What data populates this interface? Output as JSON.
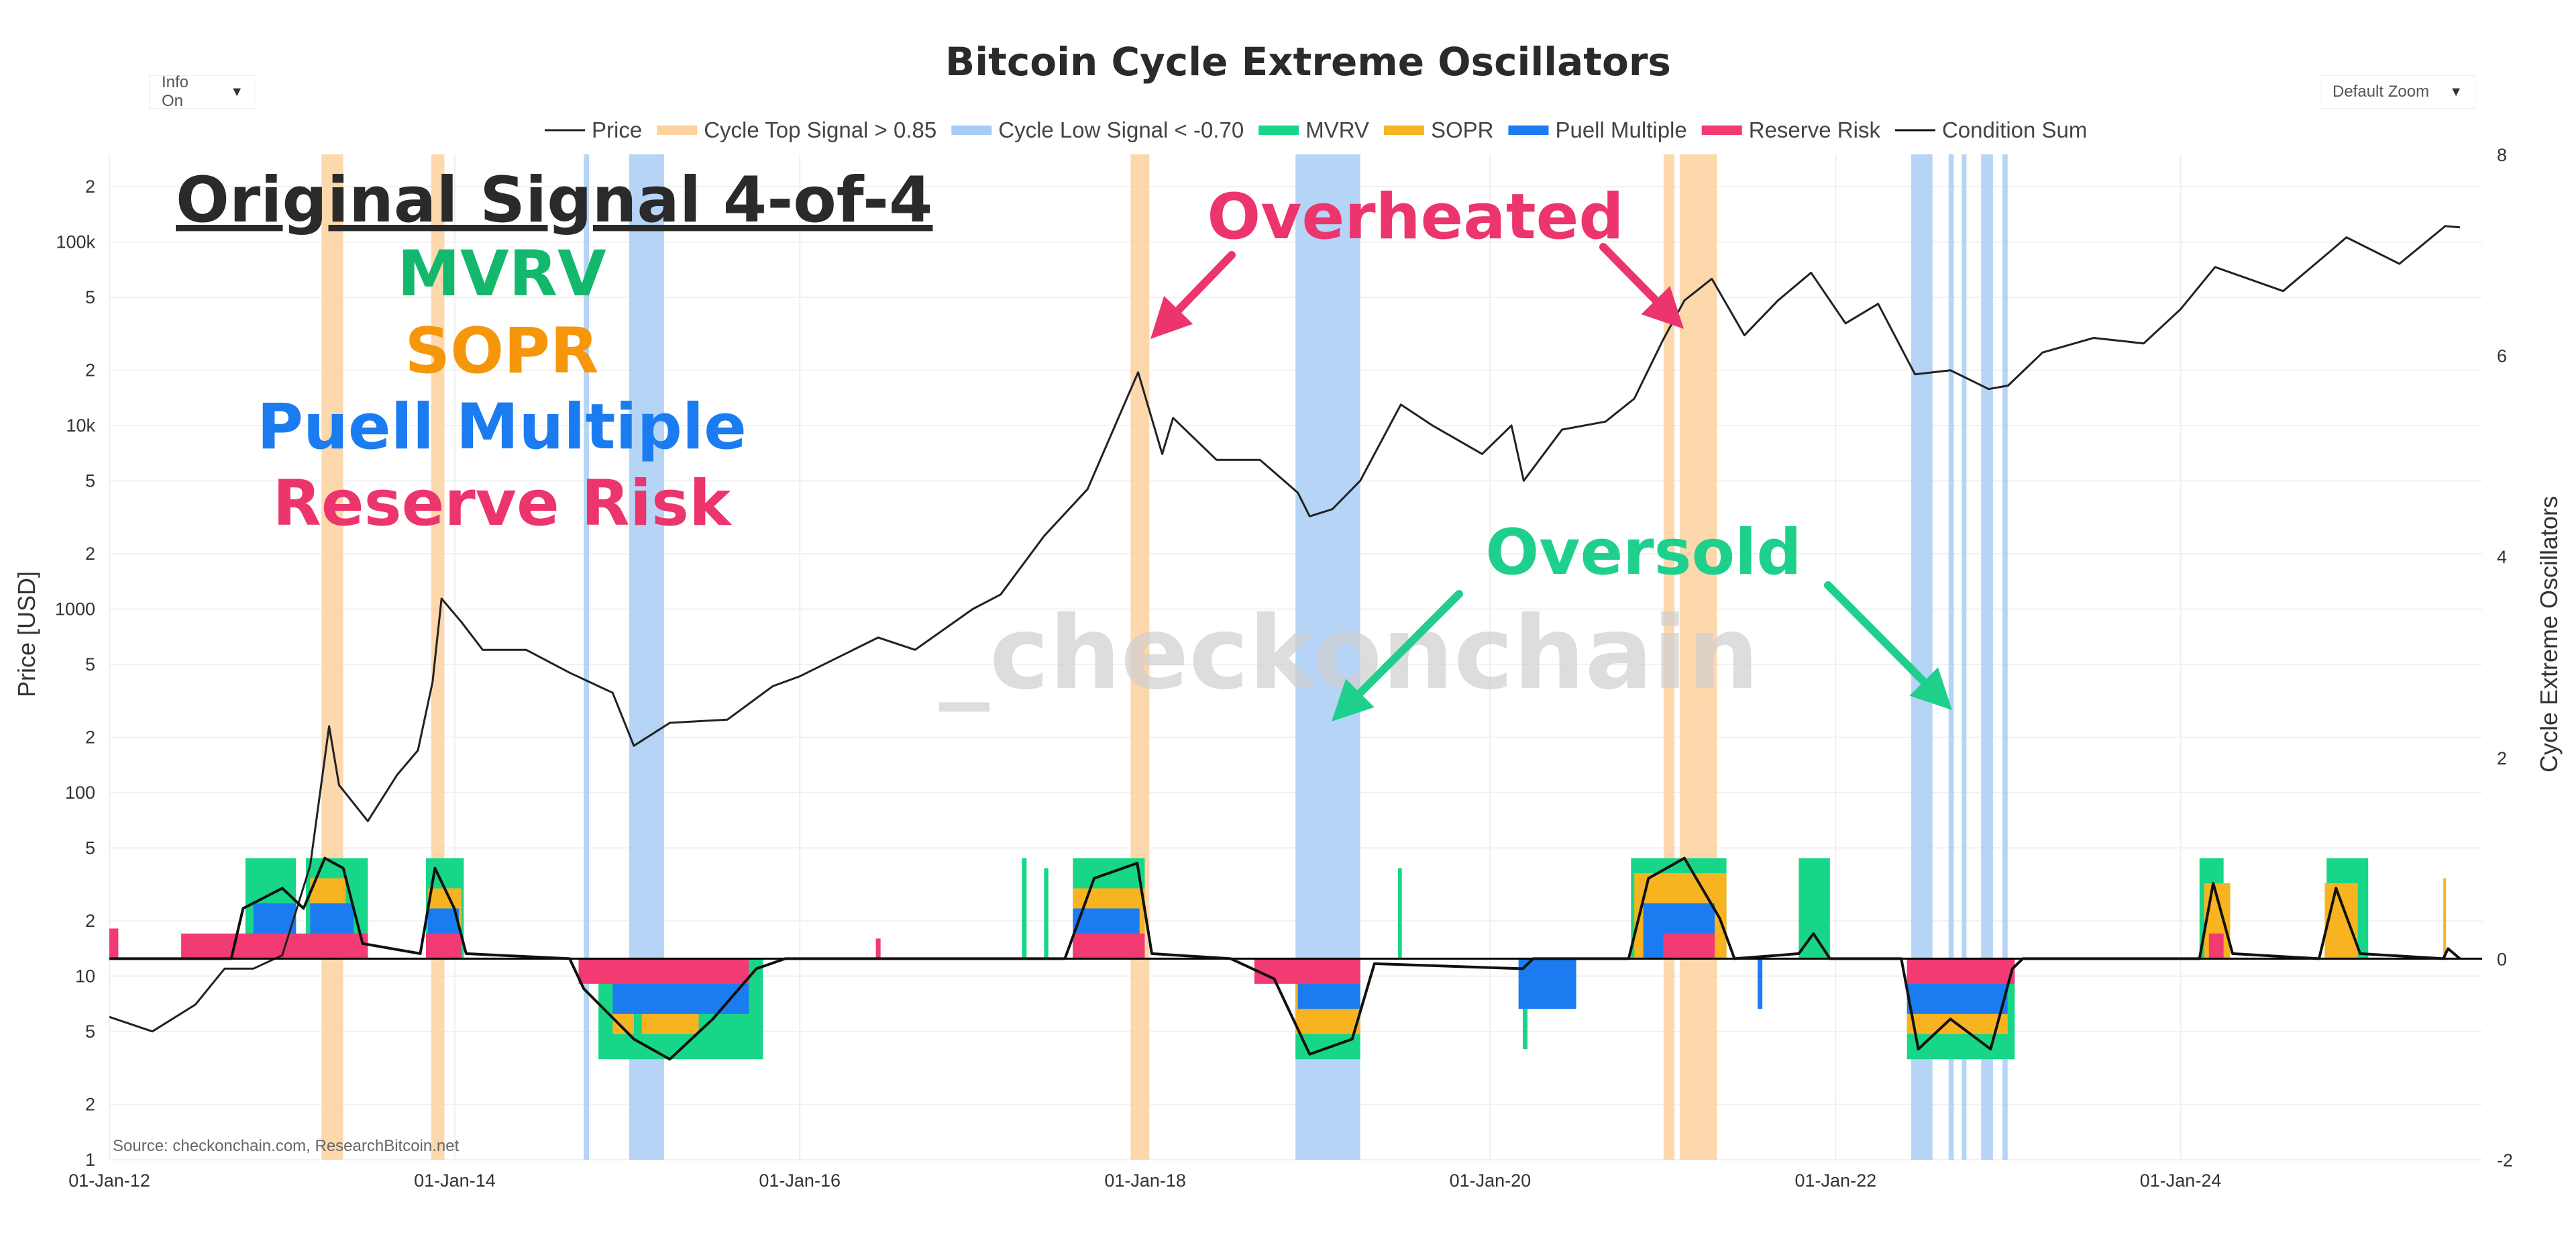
{
  "controls": {
    "info_dropdown": {
      "label": "Info On",
      "arrow": "▼"
    },
    "zoom_dropdown": {
      "label": "Default Zoom",
      "arrow": "▼"
    }
  },
  "chart_data": {
    "type": "line",
    "title": "Bitcoin Cycle Extreme Oscillators",
    "ylabel": "Price [USD]",
    "y2label": "Cycle Extreme Oscillators",
    "source": "Source: checkonchain.com, ResearchBitcoin.net",
    "watermark": "_checkonchain",
    "y_scale": "log",
    "ylim": [
      1,
      300000
    ],
    "y2lim": [
      -2,
      8
    ],
    "xlim": [
      "2012-01-01",
      "2025-09-30"
    ],
    "x_tick_labels": [
      "01-Jan-12",
      "01-Jan-14",
      "01-Jan-16",
      "01-Jan-18",
      "01-Jan-20",
      "01-Jan-22",
      "01-Jan-24"
    ],
    "y_tick_labels": [
      {
        "v": 1,
        "t": "1"
      },
      {
        "v": 2,
        "t": "2"
      },
      {
        "v": 5,
        "t": "5"
      },
      {
        "v": 10,
        "t": "10"
      },
      {
        "v": 20,
        "t": "2"
      },
      {
        "v": 50,
        "t": "5"
      },
      {
        "v": 100,
        "t": "100"
      },
      {
        "v": 200,
        "t": "2"
      },
      {
        "v": 500,
        "t": "5"
      },
      {
        "v": 1000,
        "t": "1000"
      },
      {
        "v": 2000,
        "t": "2"
      },
      {
        "v": 5000,
        "t": "5"
      },
      {
        "v": 10000,
        "t": "10k"
      },
      {
        "v": 20000,
        "t": "2"
      },
      {
        "v": 50000,
        "t": "5"
      },
      {
        "v": 100000,
        "t": "100k"
      },
      {
        "v": 200000,
        "t": "2"
      }
    ],
    "y2_tick_labels": [
      "-2",
      "0",
      "2",
      "4",
      "6",
      "8"
    ],
    "legend": [
      {
        "name": "Price",
        "color": "#222222",
        "kind": "line"
      },
      {
        "name": "Cycle Top Signal > 0.85",
        "color": "#fbd19e",
        "kind": "band"
      },
      {
        "name": "Cycle Low Signal < -0.70",
        "color": "#a8ccf5",
        "kind": "band"
      },
      {
        "name": "MVRV",
        "color": "#18d688",
        "kind": "band"
      },
      {
        "name": "SOPR",
        "color": "#f7b320",
        "kind": "band"
      },
      {
        "name": "Puell Multiple",
        "color": "#1a7cf0",
        "kind": "band"
      },
      {
        "name": "Reserve Risk",
        "color": "#f23a73",
        "kind": "band"
      },
      {
        "name": "Condition Sum",
        "color": "#111111",
        "kind": "line"
      }
    ],
    "price_series": [
      [
        "2012-01-01",
        6
      ],
      [
        "2012-04-01",
        5
      ],
      [
        "2012-07-01",
        7
      ],
      [
        "2012-09-01",
        11
      ],
      [
        "2012-11-01",
        11
      ],
      [
        "2013-01-01",
        13
      ],
      [
        "2013-03-01",
        40
      ],
      [
        "2013-04-10",
        230
      ],
      [
        "2013-05-01",
        110
      ],
      [
        "2013-07-01",
        70
      ],
      [
        "2013-09-01",
        125
      ],
      [
        "2013-10-15",
        170
      ],
      [
        "2013-11-15",
        400
      ],
      [
        "2013-12-04",
        1140
      ],
      [
        "2014-01-15",
        850
      ],
      [
        "2014-03-01",
        600
      ],
      [
        "2014-06-01",
        600
      ],
      [
        "2014-09-01",
        450
      ],
      [
        "2014-12-01",
        350
      ],
      [
        "2015-01-15",
        180
      ],
      [
        "2015-04-01",
        240
      ],
      [
        "2015-08-01",
        250
      ],
      [
        "2015-11-05",
        380
      ],
      [
        "2016-01-01",
        430
      ],
      [
        "2016-06-15",
        700
      ],
      [
        "2016-09-01",
        600
      ],
      [
        "2017-01-01",
        1000
      ],
      [
        "2017-03-01",
        1200
      ],
      [
        "2017-06-01",
        2500
      ],
      [
        "2017-09-01",
        4500
      ],
      [
        "2017-12-17",
        19500
      ],
      [
        "2018-02-06",
        7000
      ],
      [
        "2018-03-01",
        11000
      ],
      [
        "2018-06-01",
        6500
      ],
      [
        "2018-09-01",
        6500
      ],
      [
        "2018-11-20",
        4300
      ],
      [
        "2018-12-15",
        3200
      ],
      [
        "2019-02-01",
        3500
      ],
      [
        "2019-04-01",
        5000
      ],
      [
        "2019-06-26",
        13000
      ],
      [
        "2019-09-01",
        10000
      ],
      [
        "2019-12-15",
        7000
      ],
      [
        "2020-02-15",
        10000
      ],
      [
        "2020-03-12",
        5000
      ],
      [
        "2020-06-01",
        9500
      ],
      [
        "2020-09-01",
        10500
      ],
      [
        "2020-11-01",
        14000
      ],
      [
        "2020-12-31",
        29000
      ],
      [
        "2021-02-15",
        48000
      ],
      [
        "2021-04-14",
        63000
      ],
      [
        "2021-06-22",
        31000
      ],
      [
        "2021-09-01",
        48000
      ],
      [
        "2021-11-10",
        68000
      ],
      [
        "2022-01-22",
        36000
      ],
      [
        "2022-04-01",
        46000
      ],
      [
        "2022-06-18",
        19000
      ],
      [
        "2022-09-01",
        20000
      ],
      [
        "2022-11-21",
        15800
      ],
      [
        "2023-01-01",
        16500
      ],
      [
        "2023-03-15",
        25000
      ],
      [
        "2023-07-01",
        30000
      ],
      [
        "2023-10-15",
        28000
      ],
      [
        "2024-01-01",
        43000
      ],
      [
        "2024-03-14",
        73000
      ],
      [
        "2024-08-05",
        54000
      ],
      [
        "2024-11-15",
        90000
      ],
      [
        "2024-12-17",
        106000
      ],
      [
        "2025-04-08",
        76000
      ],
      [
        "2025-07-14",
        122000
      ],
      [
        "2025-08-14",
        120000
      ]
    ],
    "cycle_top_signal_bands": [
      [
        "2013-03-25",
        "2013-05-10"
      ],
      [
        "2013-11-12",
        "2013-12-10"
      ],
      [
        "2017-12-01",
        "2018-01-10"
      ],
      [
        "2021-01-02",
        "2021-01-25"
      ],
      [
        "2021-02-05",
        "2021-04-25"
      ]
    ],
    "cycle_low_signal_bands": [
      [
        "2014-10-01",
        "2014-10-12"
      ],
      [
        "2015-01-05",
        "2015-03-20"
      ],
      [
        "2018-11-15",
        "2019-04-01"
      ],
      [
        "2022-06-10",
        "2022-07-25"
      ],
      [
        "2022-08-28",
        "2022-09-08"
      ],
      [
        "2022-09-25",
        "2022-10-05"
      ],
      [
        "2022-11-05",
        "2022-11-30"
      ],
      [
        "2022-12-20",
        "2022-12-31"
      ]
    ],
    "oscillator_bars": {
      "MVRV": [
        [
          "2012-10-15",
          "2013-01-30",
          1
        ],
        [
          "2013-02-20",
          "2013-07-01",
          1
        ],
        [
          "2013-11-01",
          "2014-01-20",
          1
        ],
        [
          "2014-11-01",
          "2015-10-15",
          -1
        ],
        [
          "2017-04-15",
          "2017-04-25",
          1
        ],
        [
          "2017-06-01",
          "2017-06-10",
          0.9
        ],
        [
          "2017-08-01",
          "2017-12-31",
          1
        ],
        [
          "2018-11-15",
          "2019-04-01",
          -1
        ],
        [
          "2019-06-20",
          "2019-06-28",
          0.9
        ],
        [
          "2020-03-10",
          "2020-03-20",
          -0.9
        ],
        [
          "2020-10-25",
          "2021-05-15",
          1
        ],
        [
          "2021-10-15",
          "2021-12-20",
          1
        ],
        [
          "2022-06-01",
          "2023-01-15",
          -1
        ],
        [
          "2024-02-10",
          "2024-04-01",
          1
        ],
        [
          "2024-11-05",
          "2025-02-01",
          1
        ]
      ],
      "SOPR": [
        [
          "2013-03-01",
          "2013-05-15",
          0.8
        ],
        [
          "2013-11-05",
          "2014-01-15",
          0.7
        ],
        [
          "2014-12-01",
          "2015-01-15",
          -0.75
        ],
        [
          "2015-02-01",
          "2015-06-01",
          -0.75
        ],
        [
          "2017-08-01",
          "2017-12-31",
          0.7
        ],
        [
          "2018-11-15",
          "2019-04-01",
          -0.75
        ],
        [
          "2020-11-01",
          "2021-05-15",
          0.85
        ],
        [
          "2022-06-01",
          "2022-12-31",
          -0.75
        ],
        [
          "2024-02-20",
          "2024-04-15",
          0.75
        ],
        [
          "2024-11-01",
          "2025-01-10",
          0.75
        ],
        [
          "2025-07-10",
          "2025-07-15",
          0.8
        ]
      ],
      "Puell Multiple": [
        [
          "2012-11-01",
          "2013-01-30",
          0.55
        ],
        [
          "2013-03-01",
          "2013-06-01",
          0.55
        ],
        [
          "2013-11-05",
          "2014-01-10",
          0.5
        ],
        [
          "2014-12-01",
          "2015-09-15",
          -0.55
        ],
        [
          "2017-08-01",
          "2017-12-20",
          0.5
        ],
        [
          "2018-11-20",
          "2019-04-01",
          -0.5
        ],
        [
          "2020-03-01",
          "2020-07-01",
          -0.5
        ],
        [
          "2020-11-20",
          "2021-04-20",
          0.55
        ],
        [
          "2021-07-20",
          "2021-07-30",
          -0.5
        ],
        [
          "2022-06-01",
          "2022-12-31",
          -0.55
        ]
      ],
      "Reserve Risk": [
        [
          "2012-01-01",
          "2012-01-20",
          0.3
        ],
        [
          "2012-06-01",
          "2013-07-01",
          0.25
        ],
        [
          "2013-11-01",
          "2014-01-15",
          0.25
        ],
        [
          "2014-09-20",
          "2015-09-15",
          -0.25
        ],
        [
          "2016-06-10",
          "2016-06-20",
          0.2
        ],
        [
          "2017-08-01",
          "2017-12-31",
          0.25
        ],
        [
          "2018-08-20",
          "2019-04-01",
          -0.25
        ],
        [
          "2021-01-01",
          "2021-04-20",
          0.25
        ],
        [
          "2022-06-01",
          "2023-01-15",
          -0.25
        ],
        [
          "2024-03-01",
          "2024-04-01",
          0.25
        ]
      ]
    },
    "condition_sum": [
      [
        "2012-01-01",
        0
      ],
      [
        "2012-09-15",
        0
      ],
      [
        "2012-10-10",
        0.5
      ],
      [
        "2013-01-01",
        0.7
      ],
      [
        "2013-02-15",
        0.5
      ],
      [
        "2013-04-01",
        1
      ],
      [
        "2013-05-10",
        0.9
      ],
      [
        "2013-06-20",
        0.15
      ],
      [
        "2013-10-20",
        0.05
      ],
      [
        "2013-11-20",
        0.9
      ],
      [
        "2013-12-31",
        0.5
      ],
      [
        "2014-01-25",
        0.05
      ],
      [
        "2014-09-01",
        0
      ],
      [
        "2014-10-01",
        -0.3
      ],
      [
        "2015-01-15",
        -0.8
      ],
      [
        "2015-04-01",
        -1
      ],
      [
        "2015-07-01",
        -0.6
      ],
      [
        "2015-10-01",
        -0.1
      ],
      [
        "2015-12-01",
        0
      ],
      [
        "2017-07-15",
        0
      ],
      [
        "2017-09-15",
        0.8
      ],
      [
        "2017-12-15",
        0.95
      ],
      [
        "2018-01-15",
        0.05
      ],
      [
        "2018-07-01",
        0
      ],
      [
        "2018-10-01",
        -0.2
      ],
      [
        "2018-12-15",
        -0.95
      ],
      [
        "2019-03-15",
        -0.8
      ],
      [
        "2019-05-01",
        -0.05
      ],
      [
        "2020-03-10",
        -0.1
      ],
      [
        "2020-04-01",
        0
      ],
      [
        "2020-10-20",
        0
      ],
      [
        "2020-12-01",
        0.8
      ],
      [
        "2021-02-15",
        1
      ],
      [
        "2021-05-01",
        0.4
      ],
      [
        "2021-06-01",
        0
      ],
      [
        "2021-10-15",
        0.05
      ],
      [
        "2021-11-15",
        0.25
      ],
      [
        "2021-12-20",
        0
      ],
      [
        "2022-05-20",
        0
      ],
      [
        "2022-06-25",
        -0.9
      ],
      [
        "2022-09-01",
        -0.6
      ],
      [
        "2022-11-25",
        -0.9
      ],
      [
        "2023-01-10",
        -0.1
      ],
      [
        "2023-02-01",
        0
      ],
      [
        "2024-02-10",
        0
      ],
      [
        "2024-03-10",
        0.75
      ],
      [
        "2024-04-20",
        0.05
      ],
      [
        "2024-10-20",
        0
      ],
      [
        "2024-11-25",
        0.7
      ],
      [
        "2025-01-15",
        0.05
      ],
      [
        "2025-07-10",
        0
      ],
      [
        "2025-07-20",
        0.1
      ],
      [
        "2025-08-14",
        0
      ]
    ]
  },
  "annotations": {
    "signal_heading": "Original Signal 4-of-4",
    "signal_lines": [
      {
        "text": "MVRV",
        "color": "#14b86c"
      },
      {
        "text": "SOPR",
        "color": "#f5960b"
      },
      {
        "text": "Puell Multiple",
        "color": "#1a7cf0"
      },
      {
        "text": "Reserve Risk",
        "color": "#ec356d"
      }
    ],
    "overheated": {
      "text": "Overheated",
      "color": "#ec356d"
    },
    "oversold": {
      "text": "Oversold",
      "color": "#1fd08c"
    }
  }
}
